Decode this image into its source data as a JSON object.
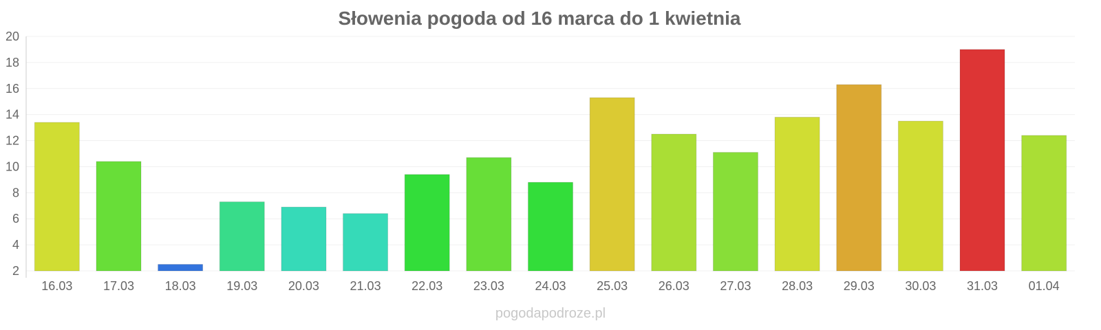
{
  "chart_data": {
    "type": "bar",
    "title": "Słowenia pogoda od 16 marca do 1 kwietnia",
    "xlabel": "",
    "ylabel": "",
    "ylim": [
      2,
      20
    ],
    "yticks": [
      2,
      4,
      6,
      8,
      10,
      12,
      14,
      16,
      18,
      20
    ],
    "grid": true,
    "categories": [
      "16.03",
      "17.03",
      "18.03",
      "19.03",
      "20.03",
      "21.03",
      "22.03",
      "23.03",
      "24.03",
      "25.03",
      "26.03",
      "27.03",
      "28.03",
      "29.03",
      "30.03",
      "31.03",
      "01.04"
    ],
    "values": [
      13.4,
      10.4,
      2.5,
      7.3,
      6.9,
      6.4,
      9.4,
      10.7,
      8.8,
      15.3,
      12.5,
      11.1,
      13.8,
      16.3,
      13.5,
      19.0,
      12.4
    ],
    "colors": [
      "#d0dd33",
      "#68de38",
      "#3373dd",
      "#38dc8a",
      "#36dab8",
      "#36dab8",
      "#33dd3a",
      "#68de38",
      "#33dd3a",
      "#dbca33",
      "#aade35",
      "#88de38",
      "#d0dd33",
      "#dba833",
      "#d0dd33",
      "#dd3535",
      "#aade35"
    ]
  },
  "watermark": "pogodapodroze.pl"
}
